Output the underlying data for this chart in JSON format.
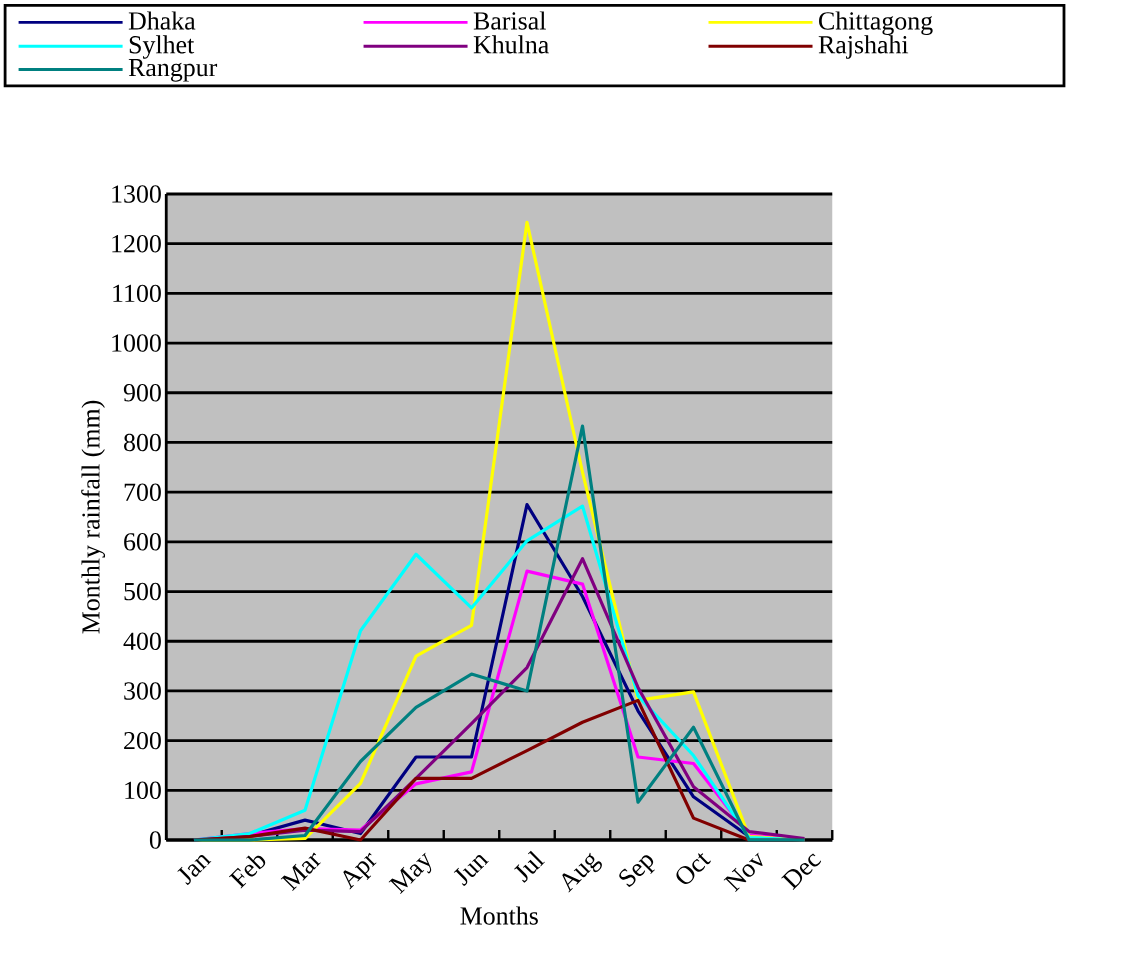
{
  "chart_data": {
    "type": "line",
    "xlabel": "Months",
    "ylabel": "Monthly rainfall (mm)",
    "categories": [
      "Jan",
      "Feb",
      "Mar",
      "Apr",
      "May",
      "Jun",
      "Jul",
      "Aug",
      "Sep",
      "Oct",
      "Nov",
      "Dec"
    ],
    "ylim": [
      0,
      1300
    ],
    "yticks": [
      0,
      100,
      200,
      300,
      400,
      500,
      600,
      700,
      800,
      900,
      1000,
      1100,
      1200,
      1300
    ],
    "grid": "y",
    "legend": "top",
    "marker": "none",
    "line_style": "solid",
    "series": [
      {
        "name": "Dhaka",
        "color": "#000080",
        "values": [
          0,
          9,
          40,
          13,
          167,
          167,
          675,
          490,
          260,
          87,
          7,
          0
        ]
      },
      {
        "name": "Barisal",
        "color": "#ff00ff",
        "values": [
          0,
          13,
          23,
          20,
          113,
          137,
          541,
          515,
          167,
          154,
          10,
          0
        ]
      },
      {
        "name": "Chittagong",
        "color": "#ffff00",
        "values": [
          0,
          0,
          3,
          114,
          370,
          432,
          1243,
          740,
          281,
          298,
          7,
          0
        ]
      },
      {
        "name": "Sylhet",
        "color": "#00ffff",
        "values": [
          0,
          13,
          60,
          421,
          575,
          467,
          602,
          672,
          290,
          170,
          5,
          0
        ]
      },
      {
        "name": "Khulna",
        "color": "#800080",
        "values": [
          0,
          7,
          20,
          17,
          124,
          234,
          347,
          566,
          307,
          107,
          17,
          3
        ]
      },
      {
        "name": "Rajshahi",
        "color": "#800000",
        "values": [
          0,
          7,
          24,
          0,
          124,
          124,
          180,
          237,
          281,
          44,
          0,
          0
        ]
      },
      {
        "name": "Rangpur",
        "color": "#008080",
        "values": [
          0,
          0,
          9,
          158,
          267,
          334,
          300,
          833,
          76,
          227,
          0,
          0
        ]
      }
    ]
  }
}
